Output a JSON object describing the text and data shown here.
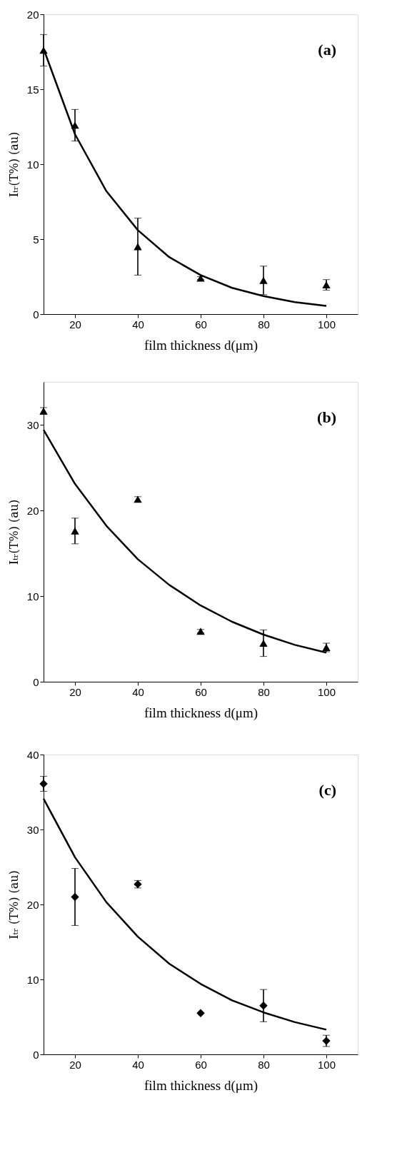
{
  "chart_data": [
    {
      "type": "scatter",
      "xlabel": "film thickness d(μm)",
      "ylabel": "Iₜᵣ(T%) (au)",
      "annotations": [
        "(a)"
      ],
      "x": [
        10,
        20,
        40,
        60,
        80,
        100
      ],
      "xlim": [
        10,
        110
      ],
      "xticks": [
        20,
        40,
        60,
        80,
        100
      ],
      "ylim": [
        0,
        20
      ],
      "yticks": [
        0,
        5,
        10,
        15,
        20
      ],
      "grid": false,
      "series": [
        {
          "marker": "triangle",
          "color": "#000000",
          "values": [
            17.6,
            12.6,
            4.5,
            2.4,
            2.25,
            1.95
          ],
          "errors": [
            1.05,
            1.05,
            1.9,
            0.1,
            0.95,
            0.35
          ]
        },
        {
          "type": "line",
          "color": "#000000",
          "x": [
            10,
            20,
            30,
            40,
            50,
            60,
            70,
            80,
            90,
            100
          ],
          "values": [
            17.7,
            12.0,
            8.2,
            5.6,
            3.8,
            2.6,
            1.75,
            1.2,
            0.8,
            0.55
          ]
        }
      ]
    },
    {
      "type": "scatter",
      "xlabel": "film thickness d(μm)",
      "ylabel": "Iₜᵣ(T%) (au)",
      "annotations": [
        "(b)"
      ],
      "x": [
        10,
        20,
        40,
        60,
        80,
        100
      ],
      "xlim": [
        10,
        110
      ],
      "xticks": [
        20,
        40,
        60,
        80,
        100
      ],
      "ylim": [
        0,
        35
      ],
      "yticks": [
        0,
        10,
        20,
        30
      ],
      "grid": false,
      "series": [
        {
          "marker": "triangle",
          "color": "#000000",
          "values": [
            31.6,
            17.6,
            21.3,
            5.9,
            4.5,
            4.0
          ],
          "errors": [
            0.4,
            1.5,
            0.3,
            0.2,
            1.55,
            0.5
          ]
        },
        {
          "type": "line",
          "color": "#000000",
          "x": [
            10,
            20,
            30,
            40,
            50,
            60,
            70,
            80,
            90,
            100
          ],
          "values": [
            29.4,
            23.1,
            18.2,
            14.3,
            11.3,
            8.9,
            7.0,
            5.5,
            4.3,
            3.4
          ]
        }
      ]
    },
    {
      "type": "scatter",
      "xlabel": "film thickness d(μm)",
      "ylabel": "Iₜᵣ (T%) (au)",
      "annotations": [
        "(c)"
      ],
      "x": [
        10,
        20,
        40,
        60,
        80,
        100
      ],
      "xlim": [
        10,
        110
      ],
      "xticks": [
        20,
        40,
        60,
        80,
        100
      ],
      "ylim": [
        0,
        40
      ],
      "yticks": [
        0,
        10,
        20,
        30,
        40
      ],
      "grid": false,
      "series": [
        {
          "marker": "diamond",
          "color": "#000000",
          "values": [
            36.1,
            21.0,
            22.7,
            5.5,
            6.5,
            1.8
          ],
          "errors": [
            1.0,
            3.8,
            0.5,
            null,
            2.15,
            0.75
          ]
        },
        {
          "type": "line",
          "color": "#000000",
          "x": [
            10,
            20,
            30,
            40,
            50,
            60,
            70,
            80,
            90,
            100
          ],
          "values": [
            34.1,
            26.3,
            20.3,
            15.7,
            12.1,
            9.4,
            7.2,
            5.6,
            4.3,
            3.3
          ]
        }
      ]
    }
  ]
}
